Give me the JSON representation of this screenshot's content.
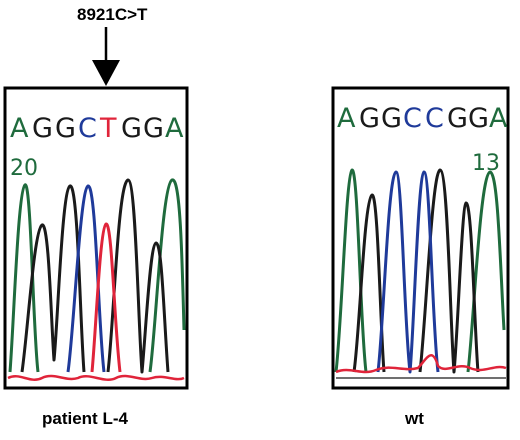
{
  "mutation": {
    "label": "8921C>T"
  },
  "panels": [
    {
      "id": "patient",
      "caption": "patient L-4",
      "position_label": "20",
      "bases": [
        {
          "letter": "A",
          "color": "#1f6b3d"
        },
        {
          "letter": "G",
          "color": "#1a1a1a"
        },
        {
          "letter": "G",
          "color": "#1a1a1a"
        },
        {
          "letter": "C",
          "color": "#1f3a9a"
        },
        {
          "letter": "T",
          "color": "#e0243a"
        },
        {
          "letter": "G",
          "color": "#1a1a1a"
        },
        {
          "letter": "G",
          "color": "#1a1a1a"
        },
        {
          "letter": "A",
          "color": "#1f6b3d"
        }
      ]
    },
    {
      "id": "wt",
      "caption": "wt",
      "position_label": "13",
      "bases": [
        {
          "letter": "A",
          "color": "#1f6b3d"
        },
        {
          "letter": "G",
          "color": "#1a1a1a"
        },
        {
          "letter": "G",
          "color": "#1a1a1a"
        },
        {
          "letter": "C",
          "color": "#1f3a9a"
        },
        {
          "letter": "C",
          "color": "#1f3a9a"
        },
        {
          "letter": "G",
          "color": "#1a1a1a"
        },
        {
          "letter": "G",
          "color": "#1a1a1a"
        },
        {
          "letter": "A",
          "color": "#1f6b3d"
        }
      ]
    }
  ],
  "colors": {
    "A": "#1f6b3d",
    "C": "#1f3a9a",
    "G": "#1a1a1a",
    "T": "#e0243a",
    "baseline": "#e0243a",
    "frame": "#000000"
  }
}
